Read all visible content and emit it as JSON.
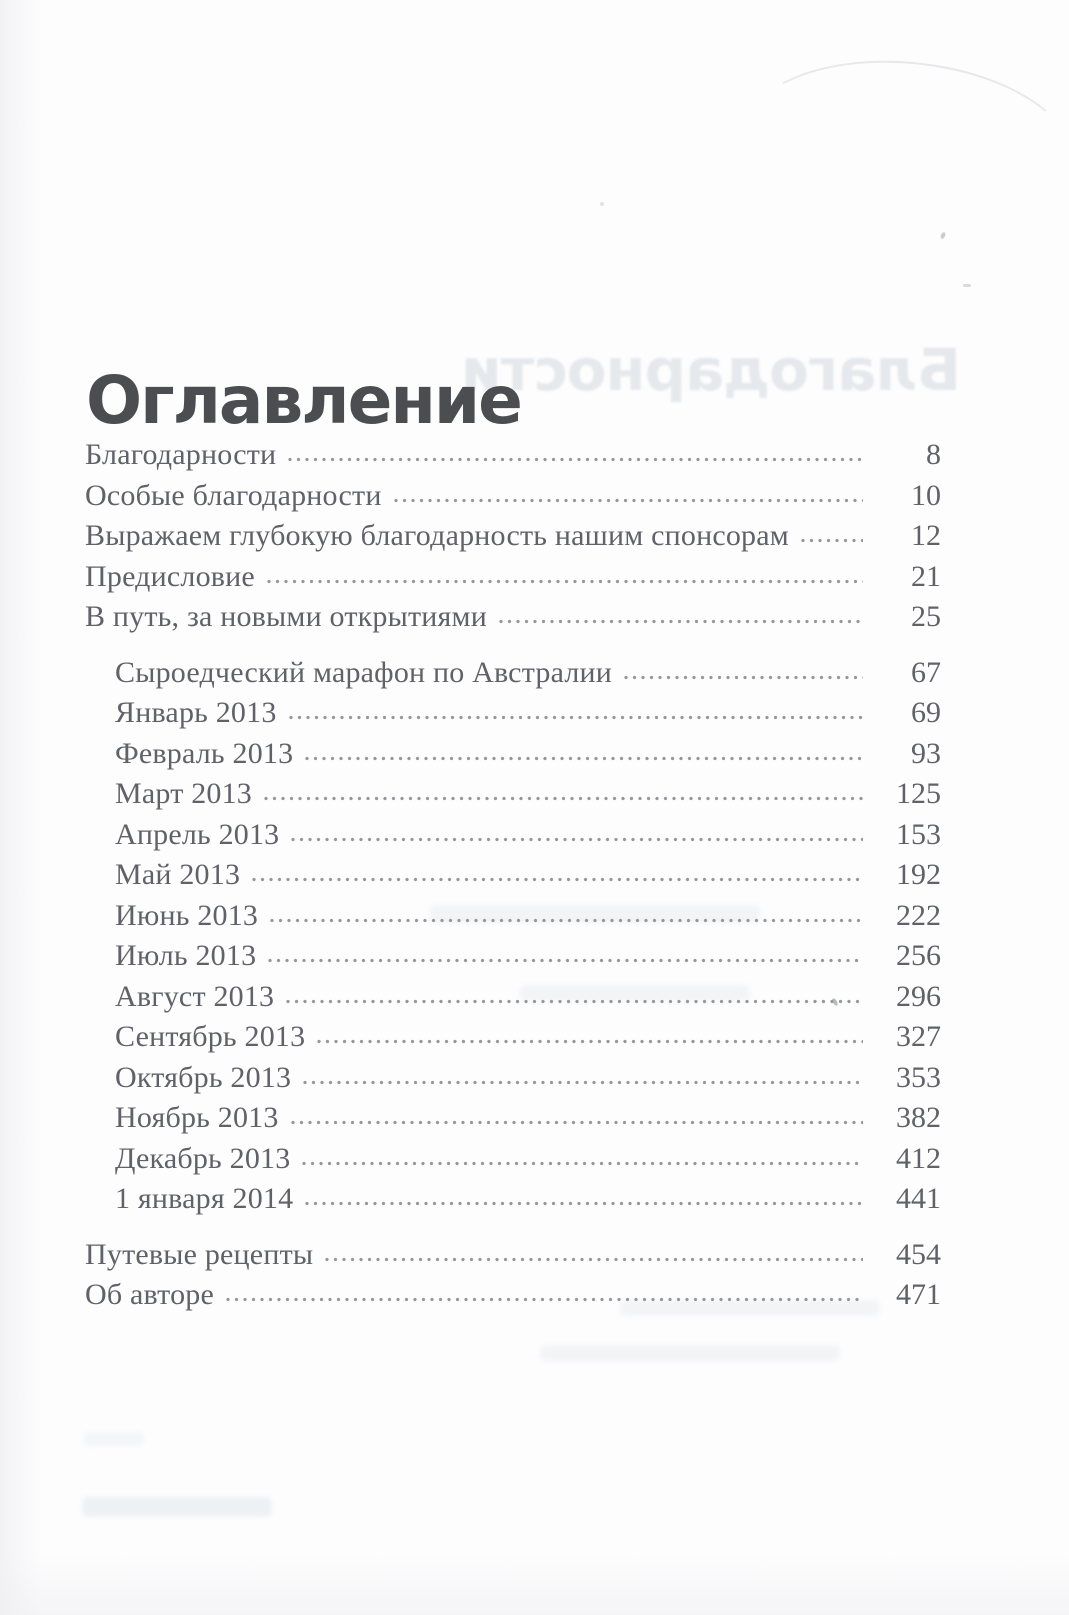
{
  "page": {
    "title": "Оглавление",
    "ghost_text": "Благодарности"
  },
  "toc": {
    "sections": [
      {
        "indent": false,
        "items": [
          {
            "label": "Благодарности",
            "page": "8"
          },
          {
            "label": "Особые благодарности",
            "page": "10"
          },
          {
            "label": "Выражаем глубокую благодарность нашим спонсорам",
            "page": "12"
          },
          {
            "label": "Предисловие",
            "page": "21"
          },
          {
            "label": "В путь, за новыми открытиями",
            "page": "25"
          }
        ]
      },
      {
        "indent": true,
        "items": [
          {
            "label": "Сыроедческий марафон по Австралии",
            "page": "67"
          },
          {
            "label": "Январь 2013",
            "page": "69"
          },
          {
            "label": "Февраль 2013",
            "page": "93"
          },
          {
            "label": "Март 2013",
            "page": "125"
          },
          {
            "label": "Апрель 2013",
            "page": "153"
          },
          {
            "label": "Май 2013",
            "page": "192"
          },
          {
            "label": "Июнь 2013",
            "page": "222"
          },
          {
            "label": "Июль 2013",
            "page": "256"
          },
          {
            "label": "Август 2013",
            "page": "296"
          },
          {
            "label": "Сентябрь 2013",
            "page": "327"
          },
          {
            "label": "Октябрь 2013",
            "page": "353"
          },
          {
            "label": "Ноябрь 2013",
            "page": "382"
          },
          {
            "label": "Декабрь 2013",
            "page": "412"
          },
          {
            "label": "1 января 2014",
            "page": "441"
          }
        ]
      },
      {
        "indent": false,
        "items": [
          {
            "label": "Путевые рецепты",
            "page": "454"
          },
          {
            "label": "Об авторе",
            "page": "471"
          }
        ]
      }
    ]
  }
}
